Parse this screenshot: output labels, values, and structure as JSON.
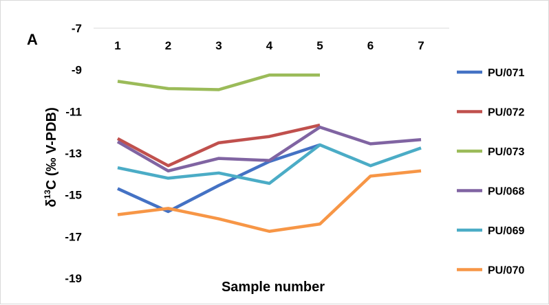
{
  "chart_data": {
    "type": "line",
    "panel_label": "A",
    "title": "",
    "xlabel": "Sample number",
    "ylabel": "δ13C (‰ V-PDB)",
    "ylabel_parts": {
      "pre": "δ",
      "sup": "13",
      "post": "C (‰ V-PDB)"
    },
    "x_axis_position": "top",
    "categories": [
      "1",
      "2",
      "3",
      "4",
      "5",
      "6",
      "7"
    ],
    "ylim": [
      -19,
      -7
    ],
    "yticks": [
      -7,
      -9,
      -11,
      -13,
      -15,
      -17,
      -19
    ],
    "grid": false,
    "legend_position": "right",
    "series": [
      {
        "name": "PU/071",
        "color": "#4472C4",
        "values": [
          -14.7,
          -15.8,
          -14.55,
          -13.4,
          -12.6,
          null,
          null
        ]
      },
      {
        "name": "PU/072",
        "color": "#C0504D",
        "values": [
          -12.3,
          -13.6,
          -12.5,
          -12.2,
          -11.65,
          null,
          null
        ]
      },
      {
        "name": "PU/073",
        "color": "#9BBB59",
        "values": [
          -9.55,
          -9.9,
          -9.95,
          -9.25,
          -9.25,
          null,
          null
        ]
      },
      {
        "name": "PU/068",
        "color": "#8064A2",
        "values": [
          -12.45,
          -13.85,
          -13.25,
          -13.35,
          -11.75,
          -12.55,
          -12.35
        ]
      },
      {
        "name": "PU/069",
        "color": "#4BACC6",
        "values": [
          -13.7,
          -14.2,
          -13.95,
          -14.45,
          -12.6,
          -13.6,
          -12.75
        ]
      },
      {
        "name": "PU/070",
        "color": "#F79646",
        "values": [
          -15.95,
          -15.65,
          -16.15,
          -16.75,
          -16.4,
          -14.1,
          -13.85
        ]
      }
    ]
  }
}
